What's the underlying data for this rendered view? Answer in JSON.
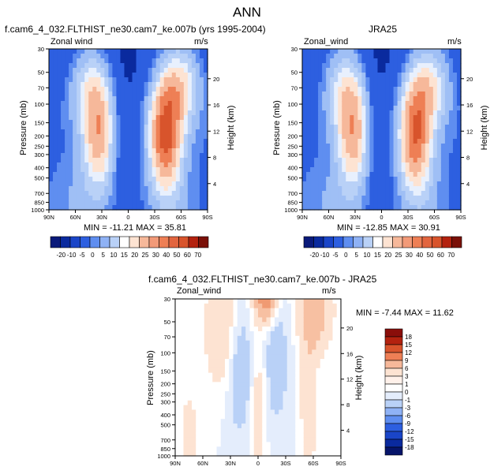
{
  "page_title": "ANN",
  "colors": {
    "neg3": "#0a2a9e",
    "neg2": "#2d5fe0",
    "neg1": "#5f8ef0",
    "z0": "#b9d1f7",
    "z1": "#e8f0fd",
    "pos1": "#fde3d2",
    "pos2": "#f6b89a",
    "pos3": "#ee7f55",
    "pos4": "#d8542c",
    "pos5": "#b3220f"
  },
  "panels": [
    {
      "title": "f.cam6_4_032.FLTHIST_ne30.cam7_ke.007b (yrs 1995-2004)",
      "left_label": "Zonal wind",
      "right_label": "m/s",
      "y_axis_label": "Pressure (mb)",
      "y2_axis_label": "Height (km)",
      "minmax": "MIN = -11.21   MAX = 35.81"
    },
    {
      "title": "JRA25",
      "left_label": "Zonal_wind",
      "right_label": "m/s",
      "y_axis_label": "Pressure (mb)",
      "y2_axis_label": "Height (km)",
      "minmax": "MIN = -12.85   MAX = 30.91"
    },
    {
      "title": "f.cam6_4_032.FLTHIST_ne30.cam7_ke.007b - JRA25",
      "left_label": "Zonal_wind",
      "right_label": "m/s",
      "y_axis_label": "Pressure (mb)",
      "y2_axis_label": "Height (km)",
      "minmax": "MIN = -7.44   MAX = 11.62"
    }
  ],
  "chart_data": [
    {
      "type": "heatmap",
      "title": "f.cam6_4_032.FLTHIST_ne30.cam7_ke.007b (yrs 1995-2004)",
      "xlabel": "",
      "ylabel": "Pressure (mb)",
      "y2label": "Height (km)",
      "x_ticks": [
        "90N",
        "60N",
        "30N",
        "0",
        "30S",
        "60S",
        "90S"
      ],
      "y_ticks": [
        "30",
        "50",
        "70",
        "100",
        "150",
        "200",
        "250",
        "300",
        "400",
        "500",
        "700",
        "850",
        "1000"
      ],
      "y2_ticks": [
        "20",
        "16",
        "12",
        "8",
        "4"
      ],
      "min": -11.21,
      "max": 35.81,
      "colorbar_levels": [
        "-20",
        "-10",
        "-5",
        "0",
        "5",
        "10",
        "15",
        "20",
        "25",
        "30",
        "40",
        "50",
        "60",
        "70"
      ],
      "jets": [
        {
          "lat": 33,
          "p": 200,
          "peak": 22
        },
        {
          "lat": -42,
          "p": 200,
          "peak": 30
        }
      ]
    },
    {
      "type": "heatmap",
      "title": "JRA25",
      "xlabel": "",
      "ylabel": "Pressure (mb)",
      "y2label": "Height (km)",
      "x_ticks": [
        "90N",
        "60N",
        "30N",
        "0",
        "30S",
        "60S",
        "90S"
      ],
      "y_ticks": [
        "30",
        "50",
        "70",
        "100",
        "150",
        "200",
        "250",
        "300",
        "400",
        "500",
        "700",
        "850",
        "1000"
      ],
      "y2_ticks": [
        "20",
        "16",
        "12",
        "8",
        "4"
      ],
      "min": -12.85,
      "max": 30.91,
      "colorbar_levels": [
        "-20",
        "-10",
        "-5",
        "0",
        "5",
        "10",
        "15",
        "20",
        "25",
        "30",
        "40",
        "50",
        "60",
        "70"
      ],
      "jets": [
        {
          "lat": 32,
          "p": 200,
          "peak": 22
        },
        {
          "lat": -38,
          "p": 200,
          "peak": 28
        }
      ]
    },
    {
      "type": "heatmap",
      "title": "f.cam6_4_032.FLTHIST_ne30.cam7_ke.007b - JRA25",
      "xlabel": "",
      "ylabel": "Pressure (mb)",
      "y2label": "Height (km)",
      "x_ticks": [
        "90N",
        "60N",
        "30N",
        "0",
        "30S",
        "60S",
        "90S"
      ],
      "y_ticks": [
        "30",
        "50",
        "70",
        "100",
        "150",
        "200",
        "250",
        "300",
        "400",
        "500",
        "700",
        "850",
        "1000"
      ],
      "y2_ticks": [
        "20",
        "16",
        "12",
        "8",
        "4"
      ],
      "min": -7.44,
      "max": 11.62,
      "colorbar_levels": [
        "18",
        "15",
        "12",
        "9",
        "6",
        "3",
        "1",
        "0",
        "-1",
        "-3",
        "-6",
        "-9",
        "-12",
        "-15",
        "-18"
      ]
    }
  ]
}
